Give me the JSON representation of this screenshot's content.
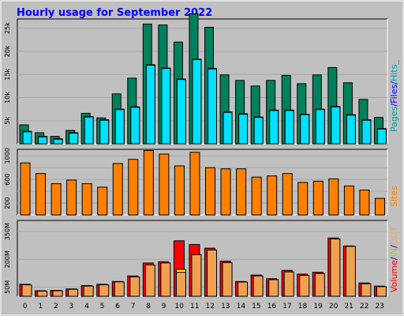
{
  "chart_data": {
    "type": "bar",
    "title": "Hourly usage for September 2022",
    "categories": [
      "0",
      "1",
      "2",
      "3",
      "4",
      "5",
      "6",
      "7",
      "8",
      "9",
      "10",
      "11",
      "12",
      "13",
      "14",
      "15",
      "16",
      "17",
      "18",
      "19",
      "20",
      "21",
      "22",
      "23"
    ],
    "panels": [
      {
        "id": "hits",
        "ylim": [
          0,
          27000
        ],
        "yticks": [
          5000,
          10000,
          15000,
          20000,
          25000
        ],
        "ytick_labels": [
          "5k",
          "10k",
          "15k",
          "20k",
          "25k"
        ],
        "series": [
          {
            "name": "Pages",
            "values": [
              4100,
              2400,
              1600,
              2900,
              6600,
              5600,
              10800,
              14200,
              25900,
              25700,
              22000,
              28100,
              25200,
              14900,
              13700,
              12500,
              13700,
              14800,
              13000,
              14900,
              16500,
              13200,
              9600,
              5700
            ]
          },
          {
            "name": "Files",
            "values": [
              2600,
              1500,
              1000,
              2300,
              5800,
              5100,
              7400,
              7900,
              17000,
              16300,
              13900,
              18200,
              16200,
              6800,
              6400,
              5700,
              7200,
              7200,
              6300,
              7400,
              8000,
              6200,
              5100,
              3200
            ]
          },
          {
            "name": "Hits",
            "values": [
              2700,
              1600,
              1100,
              2400,
              5900,
              5200,
              7500,
              8000,
              17100,
              16400,
              14000,
              18300,
              16300,
              6900,
              6500,
              5800,
              7300,
              7300,
              6400,
              7500,
              8100,
              6300,
              5200,
              3300
            ]
          }
        ],
        "legend_labels": [
          "Pages",
          "/",
          "Files",
          "/",
          "Hits",
          "_"
        ]
      },
      {
        "id": "sites",
        "ylim": [
          0,
          1110
        ],
        "yticks": [
          200,
          400,
          600,
          800,
          1000
        ],
        "ytick_labels": [
          "200",
          "",
          "600",
          "",
          "1000"
        ],
        "series": [
          {
            "name": "Sites",
            "values": [
              880,
              700,
              530,
              590,
              530,
              470,
              870,
              940,
              1090,
              1030,
              830,
              1060,
              800,
              780,
              780,
              640,
              660,
              700,
              550,
              570,
              610,
              490,
              420,
              280
            ]
          }
        ],
        "legend_labels": [
          "Sites"
        ]
      },
      {
        "id": "volume",
        "ylim": [
          0,
          410
        ],
        "yticks": [
          50,
          200,
          350
        ],
        "ytick_labels": [
          "50M",
          "200M",
          "350M"
        ],
        "series": [
          {
            "name": "Volume",
            "values": [
              65,
              30,
              32,
              40,
              58,
              65,
              80,
              110,
              180,
              187,
              300,
              280,
              260,
              190,
              80,
              115,
              95,
              140,
              120,
              130,
              315,
              272,
              72,
              55
            ]
          },
          {
            "name": "IN",
            "values": [
              0,
              0,
              0,
              0,
              0,
              0,
              0,
              0,
              0,
              0,
              145,
              0,
              0,
              0,
              0,
              0,
              0,
              0,
              0,
              0,
              0,
              0,
              0,
              0
            ]
          },
          {
            "name": "OUT",
            "values": [
              62,
              28,
              30,
              38,
              55,
              62,
              78,
              105,
              170,
              180,
              130,
              225,
              250,
              182,
              77,
              110,
              90,
              132,
              113,
              123,
              310,
              270,
              68,
              52
            ]
          }
        ],
        "legend_labels": [
          "Volume",
          "/",
          "IN",
          "/",
          "OUT"
        ]
      }
    ],
    "colors": {
      "pages": "#00805c",
      "files": "#00e0ff",
      "hits": "#00a0c0",
      "sites": "#ff8000",
      "volume": "#ff0000",
      "in": "#ffff00",
      "out": "#f0a050",
      "title": "#0000ff",
      "panel_bg": "#c0c0c0",
      "axis_labels": "#000000",
      "legend_slash": "#0000ff",
      "legend_in": "#c0c000",
      "legend_out": "#ffa050",
      "legend_volume": "#ff0000",
      "legend_sites": "#ff8000",
      "legend_pages": "#00a0a0",
      "legend_files": "#0000ff",
      "legend_hits": "#00a0c0"
    }
  }
}
